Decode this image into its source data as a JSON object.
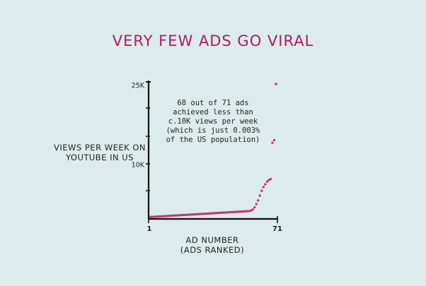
{
  "chart_data": {
    "type": "scatter",
    "title": "VERY FEW ADS GO VIRAL",
    "xlabel": "AD NUMBER\n(ADS RANKED)",
    "ylabel": "VIEWS PER WEEK ON\nYOUTUBE IN US",
    "annotation": "68 out of 71 ads\nachieved less than\nc.10K views per week\n(which is just 0.003%\nof the US population)",
    "x_ticks": [
      "1",
      "71"
    ],
    "y_ticks": [
      "10K",
      "25K"
    ],
    "xlim": [
      1,
      71
    ],
    "ylim": [
      0,
      25000
    ],
    "grid": false,
    "point_color": "#c2376f",
    "series": [
      {
        "x": [
          1,
          2,
          3,
          4,
          5,
          6,
          7,
          8,
          9,
          10,
          11,
          12,
          13,
          14,
          15,
          16,
          17,
          18,
          19,
          20,
          21,
          22,
          23,
          24,
          25,
          26,
          27,
          28,
          29,
          30,
          31,
          32,
          33,
          34,
          35,
          36,
          37,
          38,
          39,
          40,
          41,
          42,
          43,
          44,
          45,
          46,
          47,
          48,
          49,
          50,
          51,
          52,
          53,
          54,
          55,
          56,
          57,
          58,
          59,
          60,
          61,
          62,
          63,
          64,
          65,
          66,
          67,
          68,
          69,
          70,
          71
        ],
        "values": [
          100,
          120,
          140,
          160,
          180,
          200,
          220,
          240,
          260,
          280,
          300,
          320,
          340,
          360,
          380,
          400,
          420,
          440,
          460,
          480,
          500,
          520,
          540,
          560,
          580,
          600,
          620,
          640,
          660,
          680,
          700,
          720,
          740,
          760,
          780,
          800,
          820,
          840,
          860,
          880,
          900,
          920,
          940,
          960,
          980,
          1000,
          1020,
          1040,
          1060,
          1080,
          1100,
          1120,
          1140,
          1160,
          1180,
          1200,
          1300,
          1500,
          1900,
          2500,
          3200,
          4100,
          5000,
          5700,
          6200,
          6700,
          7000,
          7200,
          14000,
          14500,
          25000
        ]
      }
    ]
  }
}
